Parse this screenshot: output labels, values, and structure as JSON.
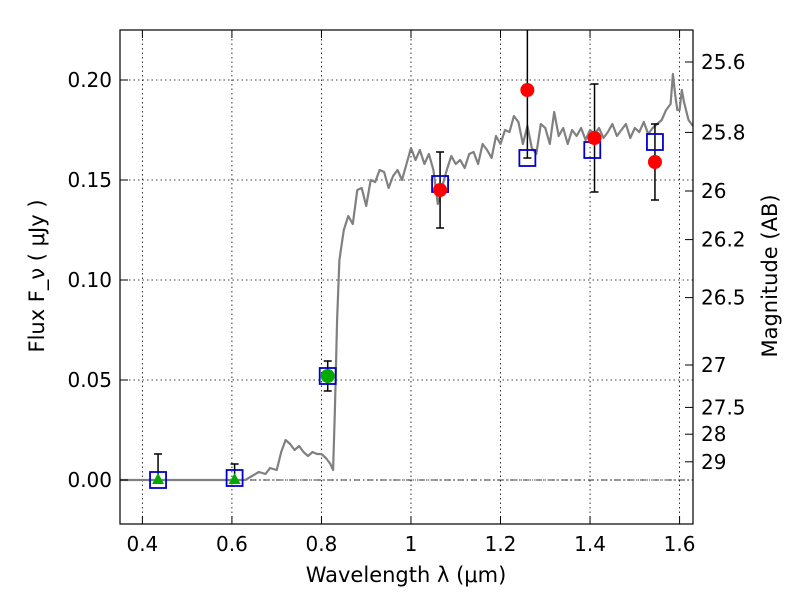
{
  "chart_data": {
    "type": "scatter",
    "xlabel": "Wavelength  λ (μm)",
    "ylabel": "Flux  F_ν  ( μJy )",
    "y2label": "Magnitude (AB)",
    "xlim": [
      0.35,
      1.63
    ],
    "ylim": [
      -0.022,
      0.225
    ],
    "grid": true,
    "x_ticks": [
      0.4,
      0.6,
      0.8,
      1.0,
      1.2,
      1.4,
      1.6
    ],
    "x_tick_labels": [
      "0.4",
      "0.6",
      "0.8",
      "1",
      "1.2",
      "1.4",
      "1.6"
    ],
    "y_ticks": [
      0.0,
      0.05,
      0.1,
      0.15,
      0.2
    ],
    "y_tick_labels": [
      "0.00",
      "0.05",
      "0.10",
      "0.15",
      "0.20"
    ],
    "mag_ticks": [
      {
        "label": "25.6",
        "flux": 0.209
      },
      {
        "label": "25.8",
        "flux": 0.1738
      },
      {
        "label": "26",
        "flux": 0.1445
      },
      {
        "label": "26.2",
        "flux": 0.1202
      },
      {
        "label": "26.5",
        "flux": 0.0912
      },
      {
        "label": "27",
        "flux": 0.0575
      },
      {
        "label": "27.5",
        "flux": 0.0363
      },
      {
        "label": "28",
        "flux": 0.0229
      },
      {
        "label": "29",
        "flux": 0.0091
      }
    ],
    "series": [
      {
        "marker": "model-spectrum",
        "color": "#808080",
        "points": [
          [
            0.35,
            0.0
          ],
          [
            0.5,
            0.0
          ],
          [
            0.63,
            0.0
          ],
          [
            0.645,
            0.002
          ],
          [
            0.66,
            0.004
          ],
          [
            0.675,
            0.003
          ],
          [
            0.685,
            0.006
          ],
          [
            0.7,
            0.005
          ],
          [
            0.71,
            0.014
          ],
          [
            0.72,
            0.02
          ],
          [
            0.73,
            0.018
          ],
          [
            0.74,
            0.015
          ],
          [
            0.75,
            0.017
          ],
          [
            0.76,
            0.014
          ],
          [
            0.77,
            0.012
          ],
          [
            0.78,
            0.014
          ],
          [
            0.79,
            0.013
          ],
          [
            0.8,
            0.013
          ],
          [
            0.81,
            0.011
          ],
          [
            0.82,
            0.008
          ],
          [
            0.826,
            0.005
          ],
          [
            0.83,
            0.035
          ],
          [
            0.835,
            0.08
          ],
          [
            0.84,
            0.11
          ],
          [
            0.85,
            0.125
          ],
          [
            0.86,
            0.132
          ],
          [
            0.87,
            0.128
          ],
          [
            0.88,
            0.145
          ],
          [
            0.89,
            0.146
          ],
          [
            0.9,
            0.137
          ],
          [
            0.91,
            0.15
          ],
          [
            0.92,
            0.149
          ],
          [
            0.93,
            0.155
          ],
          [
            0.94,
            0.154
          ],
          [
            0.95,
            0.146
          ],
          [
            0.96,
            0.152
          ],
          [
            0.97,
            0.155
          ],
          [
            0.98,
            0.15
          ],
          [
            0.99,
            0.158
          ],
          [
            1.0,
            0.166
          ],
          [
            1.01,
            0.16
          ],
          [
            1.02,
            0.165
          ],
          [
            1.03,
            0.158
          ],
          [
            1.04,
            0.163
          ],
          [
            1.05,
            0.155
          ],
          [
            1.06,
            0.138
          ],
          [
            1.07,
            0.147
          ],
          [
            1.08,
            0.155
          ],
          [
            1.09,
            0.162
          ],
          [
            1.1,
            0.158
          ],
          [
            1.11,
            0.16
          ],
          [
            1.12,
            0.156
          ],
          [
            1.13,
            0.163
          ],
          [
            1.14,
            0.164
          ],
          [
            1.15,
            0.158
          ],
          [
            1.16,
            0.168
          ],
          [
            1.17,
            0.165
          ],
          [
            1.18,
            0.161
          ],
          [
            1.19,
            0.172
          ],
          [
            1.2,
            0.168
          ],
          [
            1.21,
            0.175
          ],
          [
            1.22,
            0.174
          ],
          [
            1.23,
            0.182
          ],
          [
            1.24,
            0.179
          ],
          [
            1.25,
            0.168
          ],
          [
            1.26,
            0.177
          ],
          [
            1.27,
            0.166
          ],
          [
            1.28,
            0.163
          ],
          [
            1.29,
            0.178
          ],
          [
            1.3,
            0.176
          ],
          [
            1.31,
            0.168
          ],
          [
            1.32,
            0.184
          ],
          [
            1.33,
            0.172
          ],
          [
            1.34,
            0.176
          ],
          [
            1.35,
            0.168
          ],
          [
            1.36,
            0.175
          ],
          [
            1.37,
            0.172
          ],
          [
            1.38,
            0.176
          ],
          [
            1.39,
            0.17
          ],
          [
            1.4,
            0.175
          ],
          [
            1.41,
            0.173
          ],
          [
            1.42,
            0.176
          ],
          [
            1.43,
            0.171
          ],
          [
            1.44,
            0.174
          ],
          [
            1.45,
            0.178
          ],
          [
            1.46,
            0.172
          ],
          [
            1.47,
            0.175
          ],
          [
            1.48,
            0.178
          ],
          [
            1.49,
            0.171
          ],
          [
            1.5,
            0.176
          ],
          [
            1.51,
            0.174
          ],
          [
            1.52,
            0.179
          ],
          [
            1.53,
            0.173
          ],
          [
            1.54,
            0.176
          ],
          [
            1.55,
            0.178
          ],
          [
            1.56,
            0.18
          ],
          [
            1.57,
            0.185
          ],
          [
            1.58,
            0.188
          ],
          [
            1.585,
            0.203
          ],
          [
            1.59,
            0.193
          ],
          [
            1.595,
            0.185
          ],
          [
            1.6,
            0.185
          ],
          [
            1.605,
            0.195
          ],
          [
            1.61,
            0.189
          ],
          [
            1.62,
            0.18
          ],
          [
            1.63,
            0.177
          ]
        ]
      },
      {
        "marker": "filled-circle",
        "color": "#ff0000",
        "points": [
          {
            "x": 1.065,
            "y": 0.145,
            "err": 0.019
          },
          {
            "x": 1.26,
            "y": 0.195,
            "err": 0.034
          },
          {
            "x": 1.41,
            "y": 0.171,
            "err": 0.027
          },
          {
            "x": 1.545,
            "y": 0.159,
            "err": 0.019
          }
        ]
      },
      {
        "marker": "open-square",
        "color": "#0000cc",
        "points": [
          {
            "x": 0.435,
            "y": 0.0
          },
          {
            "x": 0.606,
            "y": 0.001
          },
          {
            "x": 0.814,
            "y": 0.052
          },
          {
            "x": 1.065,
            "y": 0.148
          },
          {
            "x": 1.26,
            "y": 0.161
          },
          {
            "x": 1.405,
            "y": 0.165
          },
          {
            "x": 1.545,
            "y": 0.169
          }
        ]
      },
      {
        "marker": "filled-triangle",
        "color": "#00aa00",
        "points": [
          {
            "x": 0.435,
            "y": 0.0,
            "err_up": 0.013,
            "err_down": 0.0
          },
          {
            "x": 0.606,
            "y": 0.0,
            "err_up": 0.008,
            "err_down": 0.0
          }
        ]
      },
      {
        "marker": "filled-circle",
        "color": "#00aa00",
        "points": [
          {
            "x": 0.814,
            "y": 0.052,
            "err": 0.0075
          }
        ]
      }
    ]
  }
}
